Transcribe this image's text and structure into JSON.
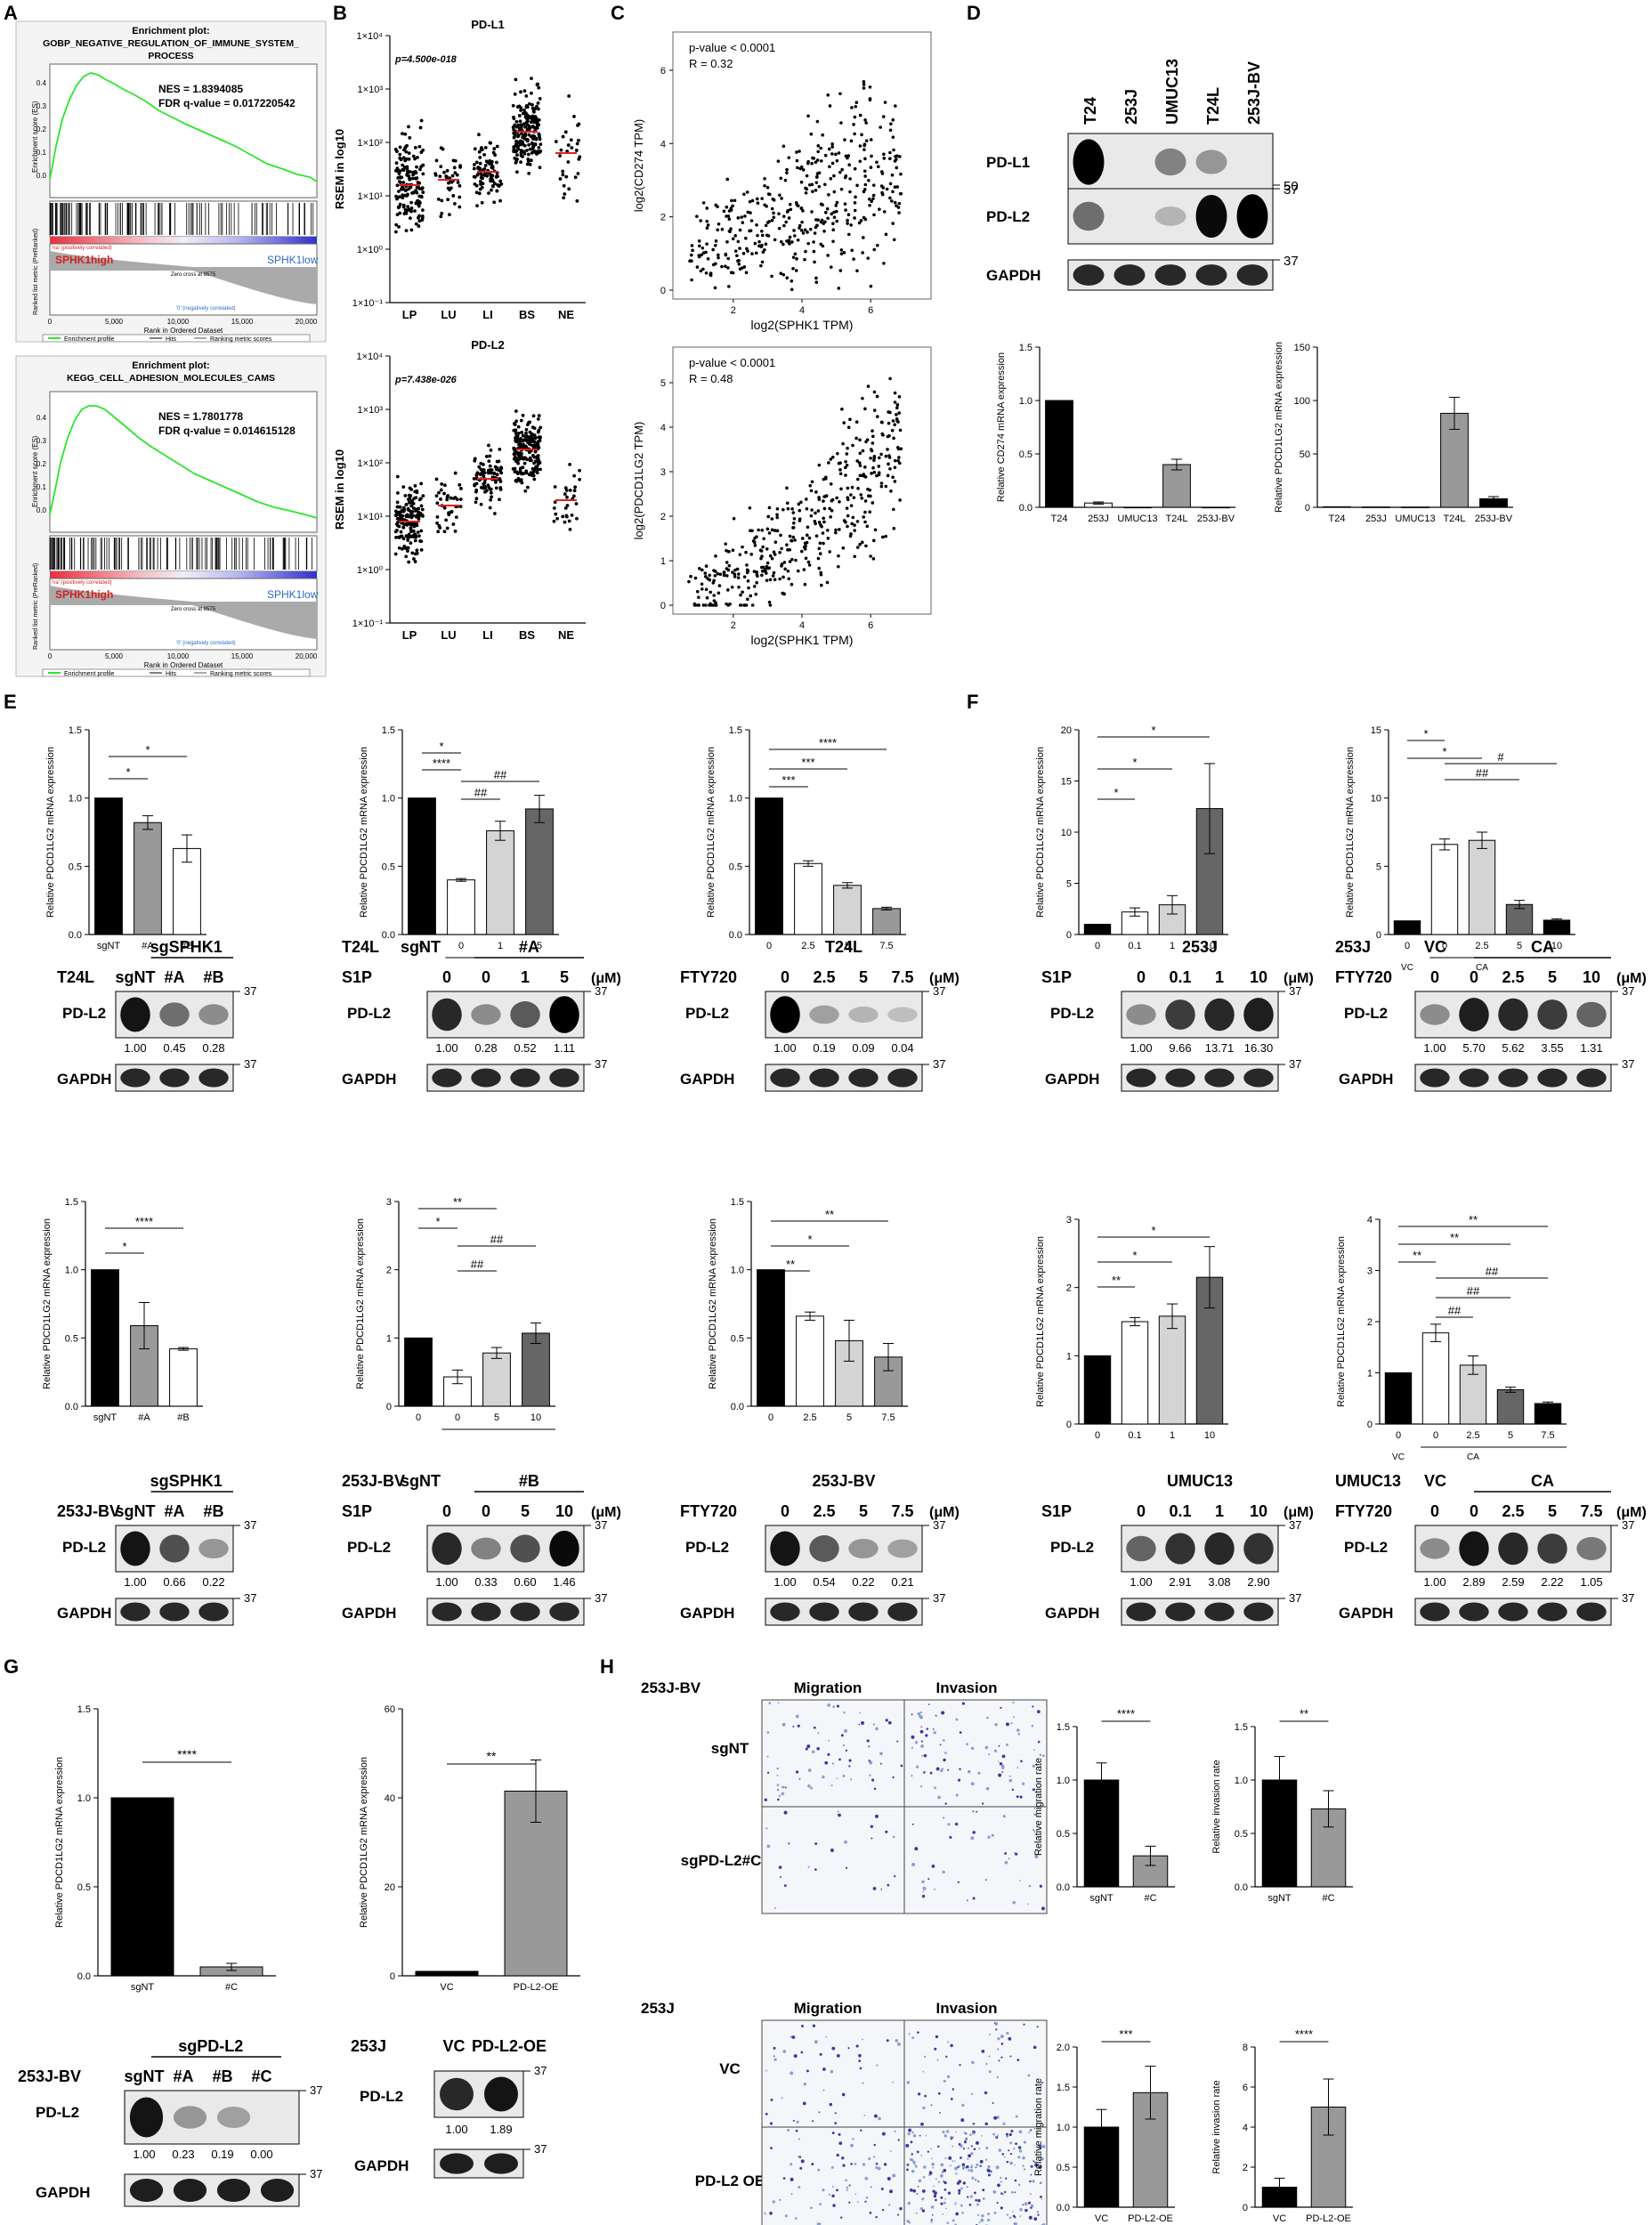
{
  "panel_letters": [
    "A",
    "B",
    "C",
    "D",
    "E",
    "F",
    "G",
    "H"
  ],
  "panelA": {
    "plots": [
      {
        "title1": "Enrichment plot:",
        "title2": "GOBP_NEGATIVE_REGULATION_OF_IMMUNE_SYSTEM_",
        "title3": "PROCESS",
        "nes": "NES = 1.8394085",
        "fdr": "FDR q-value = 0.017220542"
      },
      {
        "title1": "Enrichment plot:",
        "title2": "KEGG_CELL_ADHESION_MOLECULES_CAMS",
        "title3": "",
        "nes": "NES = 1.7801778",
        "fdr": "FDR q-value = 0.014615128"
      }
    ],
    "es_label": "Enrichment score (ES)",
    "metric_label": "Ranked list metric (PreRanked)",
    "x_label": "Rank in Ordered Dataset",
    "x_ticks": [
      "0",
      "5,000",
      "10,000",
      "15,000",
      "20,000"
    ],
    "es_ticks": [
      "0.4",
      "0.3",
      "0.2",
      "0.1",
      "0.0"
    ],
    "high_label": "SPHK1high",
    "low_label": "SPHK1low",
    "pos_corr": "'na' (positively correlated)",
    "neg_corr": "'0' (negatively correlated)",
    "zero_cross": "Zero cross at 8575",
    "legend": [
      "Enrichment profile",
      "Hits",
      "Ranking metric scores"
    ]
  },
  "panelB": {
    "plots": [
      {
        "title": "PD-L1",
        "pvalue": "p=4.500e-018"
      },
      {
        "title": "PD-L2",
        "pvalue": "p=7.438e-026"
      }
    ],
    "ylabel": "RSEM in log10",
    "yticks": [
      "1×10⁴",
      "1×10³",
      "1×10²",
      "1×10¹",
      "1×10⁰",
      "1×10⁻¹"
    ],
    "groups": [
      "LP",
      "LU",
      "LI",
      "BS",
      "NE"
    ]
  },
  "panelC": {
    "plots": [
      {
        "ylabel": "log2(CD274 TPM)",
        "pvalue": "p-value < 0.0001",
        "r": "R = 0.32",
        "yticks": [
          "6",
          "4",
          "2",
          "0"
        ]
      },
      {
        "ylabel": "log2(PDCD1LG2 TPM)",
        "pvalue": "p-value < 0.0001",
        "r": "R = 0.48",
        "yticks": [
          "5",
          "4",
          "3",
          "2",
          "1",
          "0"
        ]
      }
    ],
    "xlabel": "log2(SPHK1 TPM)",
    "xticks": [
      "2",
      "4",
      "6"
    ]
  },
  "panelD": {
    "lanes": [
      "T24",
      "253J",
      "UMUC13",
      "T24L",
      "253J-BV"
    ],
    "rows": [
      "PD-L1",
      "PD-L2",
      "GAPDH"
    ],
    "markers": [
      "50",
      "37",
      "37"
    ],
    "bars": [
      {
        "ylabel": "Relative CD274 mRNA expression",
        "yticks": [
          "1.5",
          "1.0",
          "0.5",
          "0.0"
        ],
        "values": [
          1.0,
          0.04,
          0.0,
          0.4,
          0.0
        ],
        "ymax": 1.5
      },
      {
        "ylabel": "Relative PDCD1LG2 mRNA expression",
        "yticks": [
          "150",
          "100",
          "50",
          "0"
        ],
        "values": [
          0.5,
          0.3,
          0.2,
          88,
          8
        ],
        "ymax": 150
      }
    ]
  },
  "panelE": {
    "ylabel": "Relative PDCD1LG2 mRNA expression",
    "charts": [
      {
        "id": "e1",
        "cats": [
          "sgNT",
          "#A",
          "#B"
        ],
        "values": [
          1.0,
          0.82,
          0.63
        ],
        "ymax": 1.5,
        "yticks": [
          "1.5",
          "1.0",
          "0.5",
          "0.0"
        ],
        "sig": [
          "*",
          "*"
        ]
      },
      {
        "id": "e2",
        "cats": [
          "0",
          "0",
          "1",
          "5"
        ],
        "values": [
          1.0,
          0.4,
          0.76,
          0.92
        ],
        "ymax": 1.5,
        "yticks": [
          "1.5",
          "1.0",
          "0.5",
          "0.0"
        ],
        "sig": [
          "*",
          "****",
          "##",
          "##"
        ],
        "subs": [
          "sgNT",
          "#A"
        ]
      },
      {
        "id": "e3",
        "cats": [
          "0",
          "2.5",
          "5",
          "7.5"
        ],
        "values": [
          1.0,
          0.52,
          0.36,
          0.19
        ],
        "ymax": 1.5,
        "yticks": [
          "1.5",
          "1.0",
          "0.5",
          "0.0"
        ],
        "sig": [
          "****",
          "***",
          "***"
        ]
      },
      {
        "id": "e4",
        "cats": [
          "sgNT",
          "#A",
          "#B"
        ],
        "values": [
          1.0,
          0.59,
          0.42
        ],
        "ymax": 1.5,
        "yticks": [
          "1.5",
          "1.0",
          "0.5",
          "0.0"
        ],
        "sig": [
          "****",
          "*"
        ]
      },
      {
        "id": "e5",
        "cats": [
          "0",
          "0",
          "5",
          "10"
        ],
        "values": [
          1.0,
          0.43,
          0.78,
          1.07
        ],
        "ymax": 3,
        "yticks": [
          "3",
          "2",
          "1",
          "0"
        ],
        "sig": [
          "*",
          "**",
          "##",
          "##"
        ],
        "subs": [
          "sgNT",
          "#B"
        ]
      },
      {
        "id": "e6",
        "cats": [
          "0",
          "2.5",
          "5",
          "7.5"
        ],
        "values": [
          1.0,
          0.66,
          0.48,
          0.36
        ],
        "ymax": 1.5,
        "yticks": [
          "1.5",
          "1.0",
          "0.5",
          "0.0"
        ],
        "sig": [
          "**",
          "*",
          "**"
        ]
      }
    ],
    "blots": [
      {
        "cell": "T24L",
        "header": "sgSPHK1",
        "lanes": [
          "sgNT",
          "#A",
          "#B"
        ],
        "band": "PD-L2",
        "quant": [
          "1.00",
          "0.45",
          "0.28"
        ]
      },
      {
        "cell": "T24L",
        "header2": [
          "sgNT",
          "#A"
        ],
        "treat": "S1P",
        "lanes": [
          "0",
          "0",
          "1",
          "5"
        ],
        "unit": "(μM)",
        "band": "PD-L2",
        "quant": [
          "1.00",
          "0.28",
          "0.52",
          "1.11"
        ]
      },
      {
        "cell": "T24L",
        "treat": "FTY720",
        "lanes": [
          "0",
          "2.5",
          "5",
          "7.5"
        ],
        "unit": "(μM)",
        "band": "PD-L2",
        "quant": [
          "1.00",
          "0.19",
          "0.09",
          "0.04"
        ]
      },
      {
        "cell": "253J-BV",
        "header": "sgSPHK1",
        "lanes": [
          "sgNT",
          "#A",
          "#B"
        ],
        "band": "PD-L2",
        "quant": [
          "1.00",
          "0.66",
          "0.22"
        ]
      },
      {
        "cell": "253J-BV",
        "header2": [
          "sgNT",
          "#B"
        ],
        "treat": "S1P",
        "lanes": [
          "0",
          "0",
          "5",
          "10"
        ],
        "unit": "(μM)",
        "band": "PD-L2",
        "quant": [
          "1.00",
          "0.33",
          "0.60",
          "1.46"
        ]
      },
      {
        "cell": "253J-BV",
        "treat": "FTY720",
        "lanes": [
          "0",
          "2.5",
          "5",
          "7.5"
        ],
        "unit": "(μM)",
        "band": "PD-L2",
        "quant": [
          "1.00",
          "0.54",
          "0.22",
          "0.21"
        ]
      }
    ],
    "gapdh": "GAPDH",
    "marker": "37"
  },
  "panelF": {
    "charts": [
      {
        "id": "f1",
        "cats": [
          "0",
          "0.1",
          "1",
          "10"
        ],
        "values": [
          1.0,
          2.2,
          2.9,
          12.3
        ],
        "ymax": 20,
        "yticks": [
          "20",
          "15",
          "10",
          "5",
          "0"
        ],
        "sig": [
          "*",
          "*",
          "*"
        ]
      },
      {
        "id": "f2",
        "cats": [
          "0",
          "0",
          "2.5",
          "5",
          "10"
        ],
        "values": [
          1.0,
          6.6,
          6.9,
          2.2,
          1.05
        ],
        "ymax": 15,
        "yticks": [
          "15",
          "10",
          "5",
          "0"
        ],
        "sig": [
          "*",
          "*",
          "##",
          "#"
        ],
        "subs": [
          "VC",
          "CA"
        ]
      },
      {
        "id": "f3",
        "cats": [
          "0",
          "0.1",
          "1",
          "10"
        ],
        "values": [
          1.0,
          1.5,
          1.58,
          2.15
        ],
        "ymax": 3,
        "yticks": [
          "3",
          "2",
          "1",
          "0"
        ],
        "sig": [
          "*",
          "*",
          "**"
        ]
      },
      {
        "id": "f4",
        "cats": [
          "0",
          "0",
          "2.5",
          "5",
          "7.5"
        ],
        "values": [
          1.0,
          1.78,
          1.15,
          0.67,
          0.4
        ],
        "ymax": 4,
        "yticks": [
          "4",
          "3",
          "2",
          "1",
          "0"
        ],
        "sig": [
          "**",
          "**",
          "**",
          "##",
          "##",
          "##"
        ],
        "subs": [
          "VC",
          "CA"
        ]
      }
    ],
    "blots": [
      {
        "cell": "253J",
        "treat": "S1P",
        "lanes": [
          "0",
          "0.1",
          "1",
          "10"
        ],
        "unit": "(μM)",
        "quant": [
          "1.00",
          "9.66",
          "13.71",
          "16.30"
        ]
      },
      {
        "cell": "253J",
        "header2": [
          "VC",
          "CA"
        ],
        "treat": "FTY720",
        "lanes": [
          "0",
          "0",
          "2.5",
          "5",
          "10"
        ],
        "unit": "(μM)",
        "quant": [
          "1.00",
          "5.70",
          "5.62",
          "3.55",
          "1.31"
        ]
      },
      {
        "cell": "UMUC13",
        "treat": "S1P",
        "lanes": [
          "0",
          "0.1",
          "1",
          "10"
        ],
        "unit": "(μM)",
        "quant": [
          "1.00",
          "2.91",
          "3.08",
          "2.90"
        ]
      },
      {
        "cell": "UMUC13",
        "header2": [
          "VC",
          "CA"
        ],
        "treat": "FTY720",
        "lanes": [
          "0",
          "0",
          "2.5",
          "5",
          "7.5"
        ],
        "unit": "(μM)",
        "quant": [
          "1.00",
          "2.89",
          "2.59",
          "2.22",
          "1.05"
        ]
      }
    ]
  },
  "panelG": {
    "charts": [
      {
        "cats": [
          "sgNT",
          "#C"
        ],
        "values": [
          1.0,
          0.05
        ],
        "ymax": 1.5,
        "yticks": [
          "1.5",
          "1.0",
          "0.5",
          "0.0"
        ],
        "sig": "****"
      },
      {
        "cats": [
          "VC",
          "PD-L2-OE"
        ],
        "values": [
          1.0,
          41.5
        ],
        "ymax": 60,
        "yticks": [
          "60",
          "40",
          "20",
          "0"
        ],
        "sig": "**"
      }
    ],
    "blots": [
      {
        "cell": "253J-BV",
        "header": "sgPD-L2",
        "lanes": [
          "sgNT",
          "#A",
          "#B",
          "#C"
        ],
        "quant": [
          "1.00",
          "0.23",
          "0.19",
          "0.00"
        ]
      },
      {
        "cell": "253J",
        "lanes": [
          "VC",
          "PD-L2-OE"
        ],
        "quant": [
          "1.00",
          "1.89"
        ]
      }
    ]
  },
  "panelH": {
    "groups": [
      {
        "cell": "253J-BV",
        "rows": [
          "sgNT",
          "sgPD-L2#C"
        ],
        "mig": {
          "ylabel": "Relative migration rate",
          "cats": [
            "sgNT",
            "#C"
          ],
          "values": [
            1.0,
            0.29
          ],
          "ymax": 1.5,
          "yticks": [
            "1.5",
            "1.0",
            "0.5",
            "0.0"
          ],
          "sig": "****"
        },
        "inv": {
          "ylabel": "Relative invasion rate",
          "cats": [
            "sgNT",
            "#C"
          ],
          "values": [
            1.0,
            0.73
          ],
          "ymax": 1.5,
          "yticks": [
            "1.5",
            "1.0",
            "0.5",
            "0.0"
          ],
          "sig": "**"
        }
      },
      {
        "cell": "253J",
        "rows": [
          "VC",
          "PD-L2 OE"
        ],
        "mig": {
          "ylabel": "Relative migration rate",
          "cats": [
            "VC",
            "PD-L2-OE"
          ],
          "values": [
            1.0,
            1.43
          ],
          "ymax": 2.0,
          "yticks": [
            "2.0",
            "1.5",
            "1.0",
            "0.5",
            "0.0"
          ],
          "sig": "***"
        },
        "inv": {
          "ylabel": "Relative invasion rate",
          "cats": [
            "VC",
            "PD-L2-OE"
          ],
          "values": [
            1.0,
            5.0
          ],
          "ymax": 8,
          "yticks": [
            "8",
            "6",
            "4",
            "2",
            "0"
          ],
          "sig": "****"
        }
      }
    ],
    "cols": [
      "Migration",
      "Invasion"
    ]
  }
}
